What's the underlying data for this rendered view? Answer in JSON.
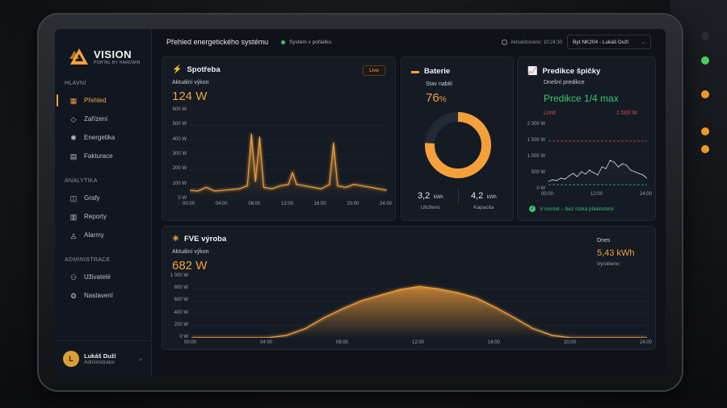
{
  "app": {
    "logo_name": "VISION",
    "logo_sub": "PORTAL BY HARDWIN",
    "page_title": "Přehled energetického systému",
    "status": "Systém v pořádku",
    "updated": "Aktualizováno: 10:24:30",
    "location": "Byt NK204 - Lukáš Duží"
  },
  "colors": {
    "accent": "#f5a03a",
    "ok": "#3ec46d",
    "danger": "#e04a3f"
  },
  "sidebar": {
    "sections": [
      {
        "title": "HLAVNÍ",
        "items": [
          {
            "label": "Přehled",
            "icon": "dashboard-icon",
            "active": true
          },
          {
            "label": "Zařízení",
            "icon": "cube-icon"
          },
          {
            "label": "Energetika",
            "icon": "energy-icon"
          },
          {
            "label": "Fakturace",
            "icon": "invoice-icon"
          }
        ]
      },
      {
        "title": "ANALYTIKA",
        "items": [
          {
            "label": "Grafy",
            "icon": "chart-icon"
          },
          {
            "label": "Reporty",
            "icon": "report-icon"
          },
          {
            "label": "Alarmy",
            "icon": "bell-icon"
          }
        ]
      },
      {
        "title": "ADMINISTRACE",
        "items": [
          {
            "label": "Uživatelé",
            "icon": "users-icon"
          },
          {
            "label": "Nastavení",
            "icon": "gear-icon"
          }
        ]
      }
    ],
    "user": {
      "initial": "L",
      "name": "Lukáš Duží",
      "role": "Administrator"
    }
  },
  "consumption": {
    "title": "Spotřeba",
    "badge": "Live",
    "label": "Aktuální výkon",
    "value": "124 W",
    "chart_data": {
      "type": "line",
      "x": [
        0,
        1,
        2,
        3,
        4,
        5,
        6,
        7,
        7.5,
        8,
        8.5,
        9,
        10,
        11,
        12,
        12.5,
        13,
        14,
        15,
        16,
        17,
        17.5,
        18,
        19,
        20,
        21,
        22,
        23,
        24
      ],
      "y": [
        60,
        55,
        80,
        55,
        60,
        65,
        70,
        90,
        440,
        120,
        420,
        80,
        70,
        90,
        100,
        180,
        100,
        90,
        80,
        70,
        100,
        380,
        90,
        80,
        100,
        90,
        80,
        70,
        60
      ],
      "x_ticks": [
        "00:00",
        "04:00",
        "08:00",
        "12:00",
        "16:00",
        "20:00",
        "24:00"
      ],
      "y_ticks": [
        "600 W",
        "500 W",
        "400 W",
        "300 W",
        "200 W",
        "100 W",
        "0 W"
      ],
      "ylim": [
        0,
        600
      ],
      "xlim": [
        0,
        24
      ]
    }
  },
  "battery": {
    "title": "Baterie",
    "label": "Stav nabití",
    "percent": 76,
    "percent_value": "76",
    "percent_sign": "%",
    "stored_value": "3,2",
    "stored_unit": "kWh",
    "stored_label": "Uloženo",
    "capacity_value": "4,2",
    "capacity_unit": "kWh",
    "capacity_label": "Kapacita"
  },
  "peak": {
    "title": "Predikce špičky",
    "label": "Dnešní predikce",
    "prediction": "Predikce 1/4 max",
    "limit_label": "Limit",
    "limit_value": "1 500 W",
    "note": "V normě – bez rizika překročení",
    "chart_data": {
      "type": "line",
      "x": [
        0,
        1,
        2,
        3,
        4,
        5,
        6,
        7,
        8,
        9,
        10,
        11,
        12,
        13,
        14,
        15,
        16,
        17,
        18,
        19,
        20,
        21,
        22,
        23,
        24
      ],
      "y": [
        250,
        300,
        280,
        350,
        320,
        420,
        500,
        400,
        550,
        480,
        600,
        520,
        450,
        700,
        650,
        900,
        850,
        700,
        800,
        750,
        600,
        550,
        500,
        450,
        350
      ],
      "limit": 1500,
      "threshold": 150,
      "x_ticks": [
        "00:00",
        "12:00",
        "24:00"
      ],
      "y_ticks": [
        "2 000 W",
        "1 500 W",
        "1 000 W",
        "500 W",
        "0 W"
      ],
      "ylim": [
        0,
        2000
      ],
      "xlim": [
        0,
        24
      ]
    }
  },
  "pv": {
    "title": "FVE výroba",
    "label": "Aktuální výkon",
    "value": "682 W",
    "today_label": "Dnes",
    "today_value": "5,43 kWh",
    "today_sub": "Vyrobeno",
    "chart_data": {
      "type": "area",
      "x": [
        0,
        4,
        5,
        6,
        7,
        8,
        9,
        10,
        11,
        12,
        13,
        14,
        15,
        16,
        17,
        18,
        19,
        20,
        24
      ],
      "y": [
        0,
        0,
        40,
        150,
        330,
        480,
        610,
        700,
        790,
        840,
        800,
        740,
        650,
        500,
        330,
        150,
        40,
        0,
        0
      ],
      "x_ticks": [
        "00:00",
        "04:00",
        "08:00",
        "12:00",
        "16:00",
        "20:00",
        "24:00"
      ],
      "y_ticks": [
        "1 000 W",
        "800 W",
        "600 W",
        "400 W",
        "200 W",
        "0 W"
      ],
      "ylim": [
        0,
        1000
      ],
      "xlim": [
        0,
        24
      ]
    }
  }
}
